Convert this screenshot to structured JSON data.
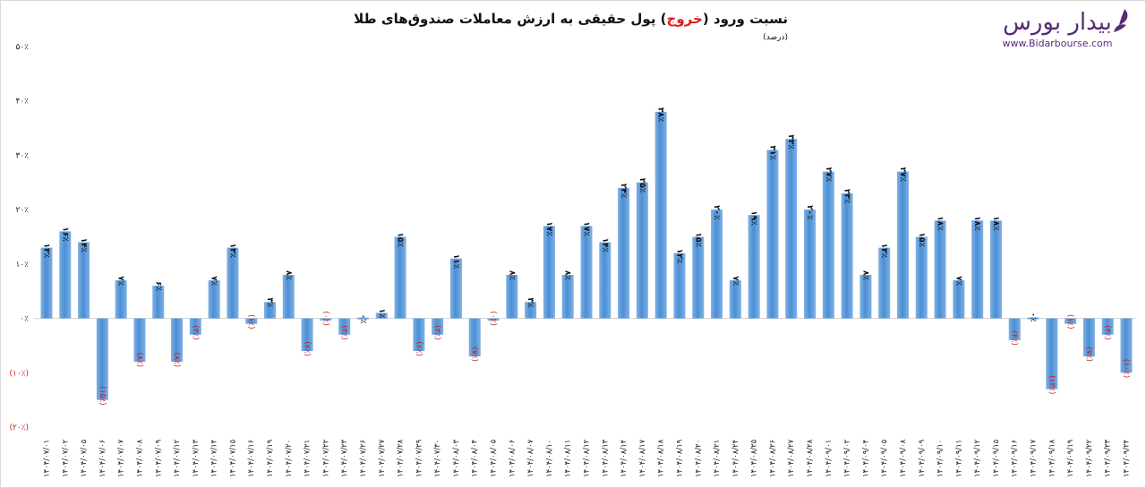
{
  "header": {
    "title_prefix": "نسبت ورود (",
    "title_red": "خروج",
    "title_suffix": ") پول حقیقی به ارزش معاملات صندوق‌های طلا",
    "unit": "(درصد)"
  },
  "logo": {
    "name": "بیدار بورس",
    "url": "www.Bidarbourse.com",
    "color": "#5a2a78"
  },
  "chart_data": {
    "type": "bar",
    "title": "نسبت ورود (خروج) پول حقیقی به ارزش معاملات صندوق‌های طلا (درصد)",
    "xlabel": "",
    "ylabel": "",
    "ylim": [
      -20,
      50
    ],
    "yticks": [
      50,
      40,
      30,
      20,
      10,
      0,
      -10,
      -20
    ],
    "ytick_labels": [
      "۵۰٪",
      "۴۰٪",
      "۳۰٪",
      "۲۰٪",
      "۱۰٪",
      "۰٪",
      "(۱۰٪)",
      "(۲۰٪)"
    ],
    "grid": false,
    "bar_color": "#5b9bd5",
    "positive_label_color": "#111111",
    "negative_label_color": "#d01c1c",
    "categories": [
      "۱۴۰۴/۰۷/۰۱",
      "۱۴۰۴/۰۷/۰۲",
      "۱۴۰۴/۰۷/۰۵",
      "۱۴۰۴/۰۷/۰۶",
      "۱۴۰۴/۰۷/۰۷",
      "۱۴۰۴/۰۷/۰۸",
      "۱۴۰۴/۰۷/۰۹",
      "۱۴۰۴/۰۷/۱۲",
      "۱۴۰۴/۰۷/۱۳",
      "۱۴۰۴/۰۷/۱۴",
      "۱۴۰۴/۰۷/۱۵",
      "۱۴۰۴/۰۷/۱۶",
      "۱۴۰۴/۰۷/۱۹",
      "۱۴۰۴/۰۷/۲۰",
      "۱۴۰۴/۰۷/۲۱",
      "۱۴۰۴/۰۷/۲۲",
      "۱۴۰۴/۰۷/۲۳",
      "۱۴۰۴/۰۷/۲۶",
      "۱۴۰۴/۰۷/۲۷",
      "۱۴۰۴/۰۷/۲۸",
      "۱۴۰۴/۰۷/۲۹",
      "۱۴۰۴/۰۷/۳۰",
      "۱۴۰۴/۰۸/۰۳",
      "۱۴۰۴/۰۸/۰۴",
      "۱۴۰۴/۰۸/۰۵",
      "۱۴۰۴/۰۸/۰۶",
      "۱۴۰۴/۰۸/۰۷",
      "۱۴۰۴/۰۸/۱۰",
      "۱۴۰۴/۰۸/۱۱",
      "۱۴۰۴/۰۸/۱۲",
      "۱۴۰۴/۰۸/۱۳",
      "۱۴۰۴/۰۸/۱۴",
      "۱۴۰۴/۰۸/۱۷",
      "۱۴۰۴/۰۸/۱۸",
      "۱۴۰۴/۰۸/۱۹",
      "۱۴۰۴/۰۸/۲۰",
      "۱۴۰۴/۰۸/۲۱",
      "۱۴۰۴/۰۸/۲۴",
      "۱۴۰۴/۰۸/۲۵",
      "۱۴۰۴/۰۸/۲۶",
      "۱۴۰۴/۰۸/۲۷",
      "۱۴۰۴/۰۸/۲۸",
      "۱۴۰۴/۰۹/۰۱",
      "۱۴۰۴/۰۹/۰۲",
      "۱۴۰۴/۰۹/۰۴",
      "۱۴۰۴/۰۹/۰۵",
      "۱۴۰۴/۰۹/۰۸",
      "۱۴۰۴/۰۹/۰۹",
      "۱۴۰۴/۰۹/۱۰",
      "۱۴۰۴/۰۹/۱۱",
      "۱۴۰۴/۰۹/۱۲",
      "۱۴۰۴/۰۹/۱۵",
      "۱۴۰۴/۰۹/۱۶",
      "۱۴۰۴/۰۹/۱۷",
      "۱۴۰۴/۰۹/۱۸",
      "۱۴۰۴/۰۹/۱۹",
      "۱۴۰۴/۰۹/۲۲",
      "۱۴۰۴/۰۹/۲۳",
      "۱۴۰۴/۰۹/۲۴"
    ],
    "values": [
      13,
      16,
      14,
      -15,
      7,
      -8,
      6,
      -8,
      -3,
      7,
      13,
      -1,
      3,
      8,
      -6,
      -0.4,
      -3,
      0,
      1,
      15,
      -6,
      -3,
      11,
      -7,
      -0.4,
      8,
      3,
      17,
      8,
      17,
      14,
      24,
      25,
      38,
      12,
      15,
      20,
      7,
      19,
      31,
      33,
      20,
      27,
      23,
      8,
      13,
      27,
      15,
      18,
      7,
      18,
      18,
      -4,
      0.3,
      -13,
      -1,
      -7,
      -3,
      -10
    ],
    "data_labels": [
      "۱۳٪",
      "۱۶٪",
      "۱۴٪",
      "(۱۵٪)",
      "۷٪",
      "(۸٪)",
      "۶٪",
      "(۸٪)",
      "(۳٪)",
      "۷٪",
      "۱۳٪",
      "(۱٪)",
      "۳٪",
      "۸٪",
      "(۶٪)",
      "(۰٪)",
      "(۳٪)",
      "۰٪",
      "۱٪",
      "۱۵٪",
      "(۶٪)",
      "(۳٪)",
      "۱۱٪",
      "(۷٪)",
      "(۰٪)",
      "۸٪",
      "۳٪",
      "۱۷٪",
      "۸٪",
      "۱۷٪",
      "۱۴٪",
      "۲۴٪",
      "۲۵٪",
      "۳۸٪",
      "۱۲٪",
      "۱۵٪",
      "۲۰٪",
      "۷٪",
      "۱۹٪",
      "۳۱٪",
      "۳۳٪",
      "۲۰٪",
      "۲۷٪",
      "۲۳٪",
      "۸٪",
      "۱۳٪",
      "۲۷٪",
      "۱۵٪",
      "۱۸٪",
      "۷٪",
      "۱۸٪",
      "۱۸٪",
      "(۴٪)",
      "۰٪",
      "(۱۳٪)",
      "(۱٪)",
      "(۷٪)",
      "(۳٪)",
      "(۱۰٪)"
    ]
  }
}
